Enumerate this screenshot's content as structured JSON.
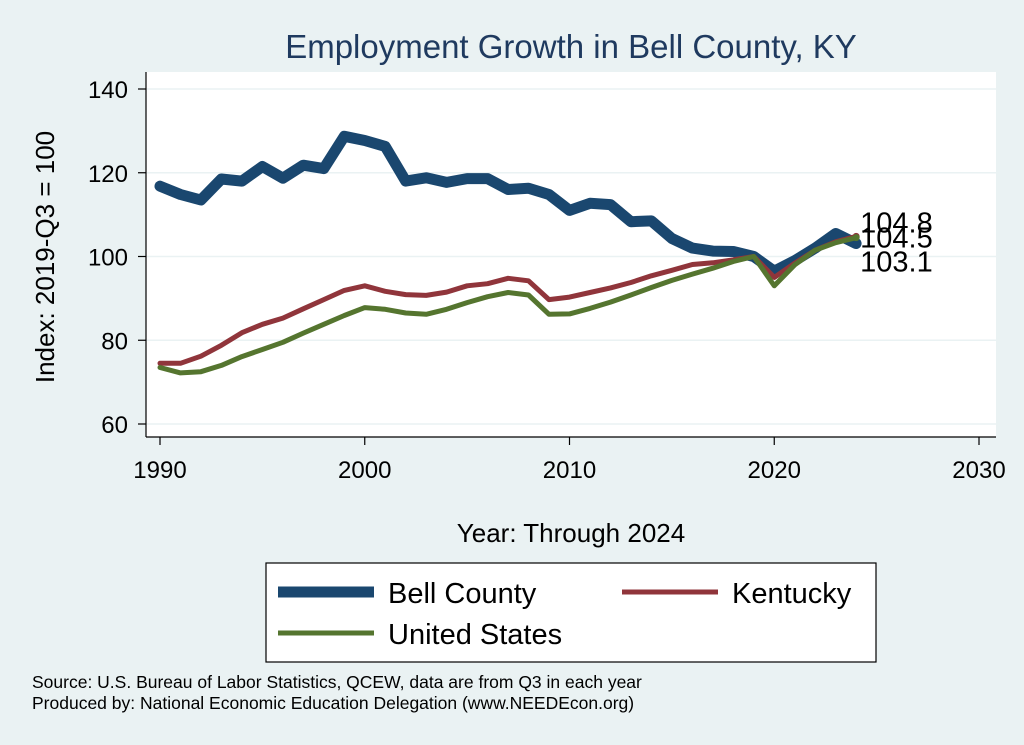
{
  "chart_data": {
    "type": "line",
    "title": "Employment Growth in Bell County, KY",
    "xlabel": "Year: Through 2024",
    "ylabel": "Index: 2019-Q3 = 100",
    "xlim": [
      1990,
      2030
    ],
    "ylim": [
      60,
      140
    ],
    "xticks": [
      1990,
      2000,
      2010,
      2020,
      2030
    ],
    "yticks": [
      60,
      80,
      100,
      120,
      140
    ],
    "grid": true,
    "x": [
      1990,
      1991,
      1992,
      1993,
      1994,
      1995,
      1996,
      1997,
      1998,
      1999,
      2000,
      2001,
      2002,
      2003,
      2004,
      2005,
      2006,
      2007,
      2008,
      2009,
      2010,
      2011,
      2012,
      2013,
      2014,
      2015,
      2016,
      2017,
      2018,
      2019,
      2020,
      2021,
      2022,
      2023,
      2024
    ],
    "series": [
      {
        "name": "Bell  County",
        "color": "#1a476f",
        "width": 11,
        "values": [
          116.8,
          114.8,
          113.5,
          118.5,
          118,
          121.5,
          118.7,
          121.8,
          121,
          128.7,
          127.7,
          126.3,
          118,
          118.8,
          117.7,
          118.6,
          118.6,
          116,
          116.3,
          114.8,
          111,
          112.7,
          112.4,
          108.3,
          108.5,
          104.3,
          102,
          101.3,
          101.2,
          100,
          96.5,
          99,
          102,
          105.5,
          103.1
        ],
        "end_label": "103.1"
      },
      {
        "name": "Kentucky",
        "color": "#90353b",
        "width": 5,
        "values": [
          74.5,
          74.5,
          76.2,
          78.8,
          81.8,
          83.8,
          85.3,
          87.5,
          89.7,
          91.9,
          93,
          91.7,
          90.9,
          90.7,
          91.5,
          93,
          93.5,
          94.8,
          94.2,
          89.7,
          90.3,
          91.4,
          92.5,
          93.8,
          95.4,
          96.7,
          98.1,
          98.5,
          99.2,
          100,
          95,
          98.4,
          101.5,
          103.5,
          104.8
        ],
        "end_label": "104.8"
      },
      {
        "name": "United States",
        "color": "#55752f",
        "width": 5,
        "values": [
          73.5,
          72.2,
          72.5,
          74,
          76.1,
          77.8,
          79.5,
          81.7,
          83.8,
          85.9,
          87.8,
          87.4,
          86.5,
          86.2,
          87.4,
          89,
          90.4,
          91.4,
          90.8,
          86.2,
          86.3,
          87.6,
          89.1,
          90.8,
          92.6,
          94.3,
          95.8,
          97.2,
          98.8,
          100,
          93,
          98,
          101.5,
          103.3,
          104.5
        ],
        "end_label": "104.5"
      }
    ]
  },
  "footer": {
    "source_line": "Source: U.S. Bureau of Labor Statistics, QCEW, data are from Q3 in each year",
    "produced_line": "Produced by: National Economic Education Delegation (www.NEEDEcon.org)"
  }
}
